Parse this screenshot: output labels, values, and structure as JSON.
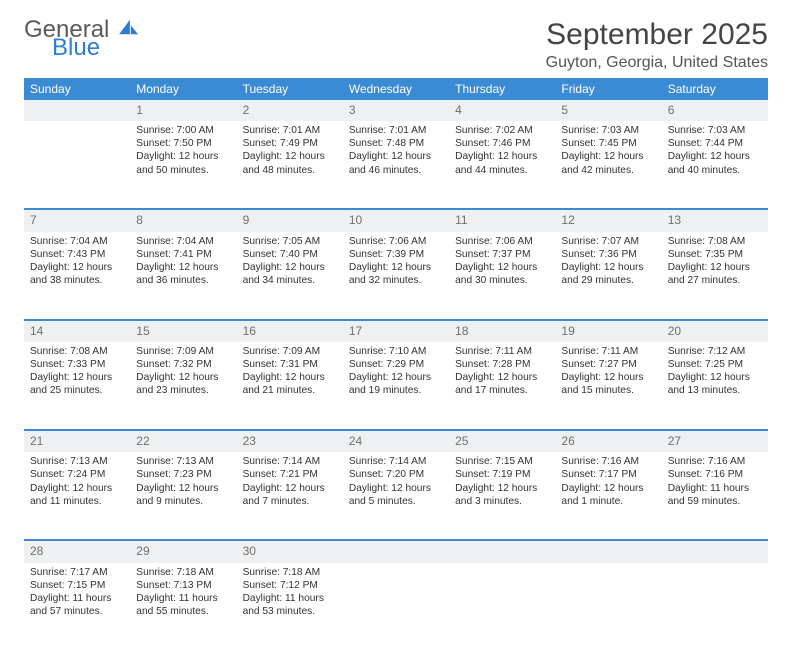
{
  "brand": {
    "part1": "General",
    "part2": "Blue"
  },
  "title": "September 2025",
  "location": "Guyton, Georgia, United States",
  "theme": {
    "header_bg": "#3b8bd4",
    "header_fg": "#ffffff",
    "daynum_bg": "#eef0f2",
    "daynum_fg": "#707070",
    "rule": "#3b8bd4"
  },
  "weekdays": [
    "Sunday",
    "Monday",
    "Tuesday",
    "Wednesday",
    "Thursday",
    "Friday",
    "Saturday"
  ],
  "weeks": [
    {
      "nums": [
        "",
        "1",
        "2",
        "3",
        "4",
        "5",
        "6"
      ],
      "cells": [
        null,
        {
          "sunrise": "7:00 AM",
          "sunset": "7:50 PM",
          "daylight": "12 hours and 50 minutes."
        },
        {
          "sunrise": "7:01 AM",
          "sunset": "7:49 PM",
          "daylight": "12 hours and 48 minutes."
        },
        {
          "sunrise": "7:01 AM",
          "sunset": "7:48 PM",
          "daylight": "12 hours and 46 minutes."
        },
        {
          "sunrise": "7:02 AM",
          "sunset": "7:46 PM",
          "daylight": "12 hours and 44 minutes."
        },
        {
          "sunrise": "7:03 AM",
          "sunset": "7:45 PM",
          "daylight": "12 hours and 42 minutes."
        },
        {
          "sunrise": "7:03 AM",
          "sunset": "7:44 PM",
          "daylight": "12 hours and 40 minutes."
        }
      ]
    },
    {
      "nums": [
        "7",
        "8",
        "9",
        "10",
        "11",
        "12",
        "13"
      ],
      "cells": [
        {
          "sunrise": "7:04 AM",
          "sunset": "7:43 PM",
          "daylight": "12 hours and 38 minutes."
        },
        {
          "sunrise": "7:04 AM",
          "sunset": "7:41 PM",
          "daylight": "12 hours and 36 minutes."
        },
        {
          "sunrise": "7:05 AM",
          "sunset": "7:40 PM",
          "daylight": "12 hours and 34 minutes."
        },
        {
          "sunrise": "7:06 AM",
          "sunset": "7:39 PM",
          "daylight": "12 hours and 32 minutes."
        },
        {
          "sunrise": "7:06 AM",
          "sunset": "7:37 PM",
          "daylight": "12 hours and 30 minutes."
        },
        {
          "sunrise": "7:07 AM",
          "sunset": "7:36 PM",
          "daylight": "12 hours and 29 minutes."
        },
        {
          "sunrise": "7:08 AM",
          "sunset": "7:35 PM",
          "daylight": "12 hours and 27 minutes."
        }
      ]
    },
    {
      "nums": [
        "14",
        "15",
        "16",
        "17",
        "18",
        "19",
        "20"
      ],
      "cells": [
        {
          "sunrise": "7:08 AM",
          "sunset": "7:33 PM",
          "daylight": "12 hours and 25 minutes."
        },
        {
          "sunrise": "7:09 AM",
          "sunset": "7:32 PM",
          "daylight": "12 hours and 23 minutes."
        },
        {
          "sunrise": "7:09 AM",
          "sunset": "7:31 PM",
          "daylight": "12 hours and 21 minutes."
        },
        {
          "sunrise": "7:10 AM",
          "sunset": "7:29 PM",
          "daylight": "12 hours and 19 minutes."
        },
        {
          "sunrise": "7:11 AM",
          "sunset": "7:28 PM",
          "daylight": "12 hours and 17 minutes."
        },
        {
          "sunrise": "7:11 AM",
          "sunset": "7:27 PM",
          "daylight": "12 hours and 15 minutes."
        },
        {
          "sunrise": "7:12 AM",
          "sunset": "7:25 PM",
          "daylight": "12 hours and 13 minutes."
        }
      ]
    },
    {
      "nums": [
        "21",
        "22",
        "23",
        "24",
        "25",
        "26",
        "27"
      ],
      "cells": [
        {
          "sunrise": "7:13 AM",
          "sunset": "7:24 PM",
          "daylight": "12 hours and 11 minutes."
        },
        {
          "sunrise": "7:13 AM",
          "sunset": "7:23 PM",
          "daylight": "12 hours and 9 minutes."
        },
        {
          "sunrise": "7:14 AM",
          "sunset": "7:21 PM",
          "daylight": "12 hours and 7 minutes."
        },
        {
          "sunrise": "7:14 AM",
          "sunset": "7:20 PM",
          "daylight": "12 hours and 5 minutes."
        },
        {
          "sunrise": "7:15 AM",
          "sunset": "7:19 PM",
          "daylight": "12 hours and 3 minutes."
        },
        {
          "sunrise": "7:16 AM",
          "sunset": "7:17 PM",
          "daylight": "12 hours and 1 minute."
        },
        {
          "sunrise": "7:16 AM",
          "sunset": "7:16 PM",
          "daylight": "11 hours and 59 minutes."
        }
      ]
    },
    {
      "nums": [
        "28",
        "29",
        "30",
        "",
        "",
        "",
        ""
      ],
      "cells": [
        {
          "sunrise": "7:17 AM",
          "sunset": "7:15 PM",
          "daylight": "11 hours and 57 minutes."
        },
        {
          "sunrise": "7:18 AM",
          "sunset": "7:13 PM",
          "daylight": "11 hours and 55 minutes."
        },
        {
          "sunrise": "7:18 AM",
          "sunset": "7:12 PM",
          "daylight": "11 hours and 53 minutes."
        },
        null,
        null,
        null,
        null
      ]
    }
  ],
  "labels": {
    "sunrise": "Sunrise: ",
    "sunset": "Sunset: ",
    "daylight": "Daylight: "
  }
}
